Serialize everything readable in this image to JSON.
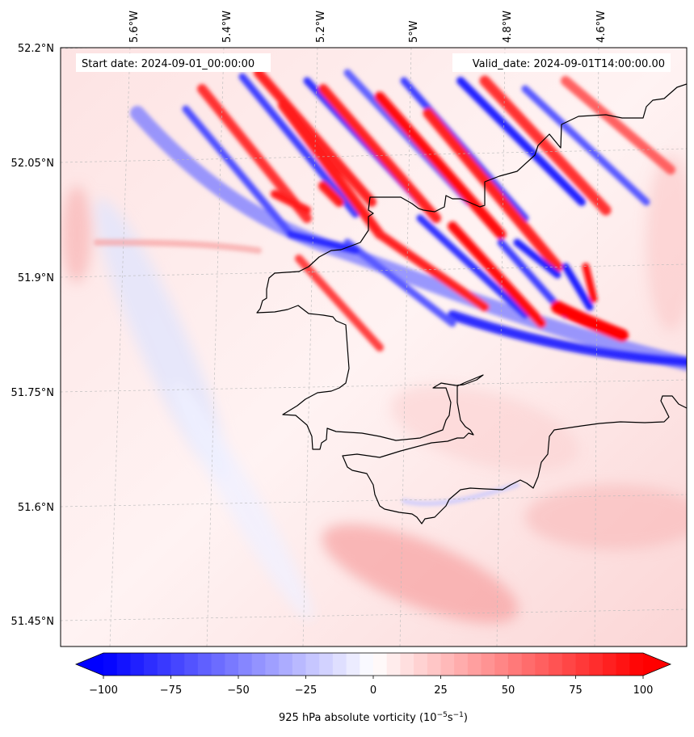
{
  "map": {
    "start_label": "Start date: 2024-09-01_00:00:00",
    "valid_label": "Valid_date: 2024-09-01T14:00:00.00",
    "lon_labels": [
      "5.6°W",
      "5.4°W",
      "5.2°W",
      "5°W",
      "4.8°W",
      "4.6°W"
    ],
    "lat_labels": [
      "52.2°N",
      "52.05°N",
      "51.9°N",
      "51.75°N",
      "51.6°N",
      "51.45°N"
    ],
    "colormap": "bwr",
    "gridlines": "dashed"
  },
  "colorbar": {
    "min": -100,
    "max": 100,
    "tick_labels": [
      "−100",
      "−75",
      "−50",
      "−25",
      "0",
      "25",
      "50",
      "75",
      "100"
    ],
    "label_main": "925 hPa absolute vorticity (10",
    "label_exp1": "−5",
    "label_mid": "s",
    "label_exp2": "−1",
    "label_end": ")",
    "extend": "both",
    "colors": {
      "low": "#0000ff",
      "mid": "#ffffff",
      "high": "#ff0000"
    }
  }
}
